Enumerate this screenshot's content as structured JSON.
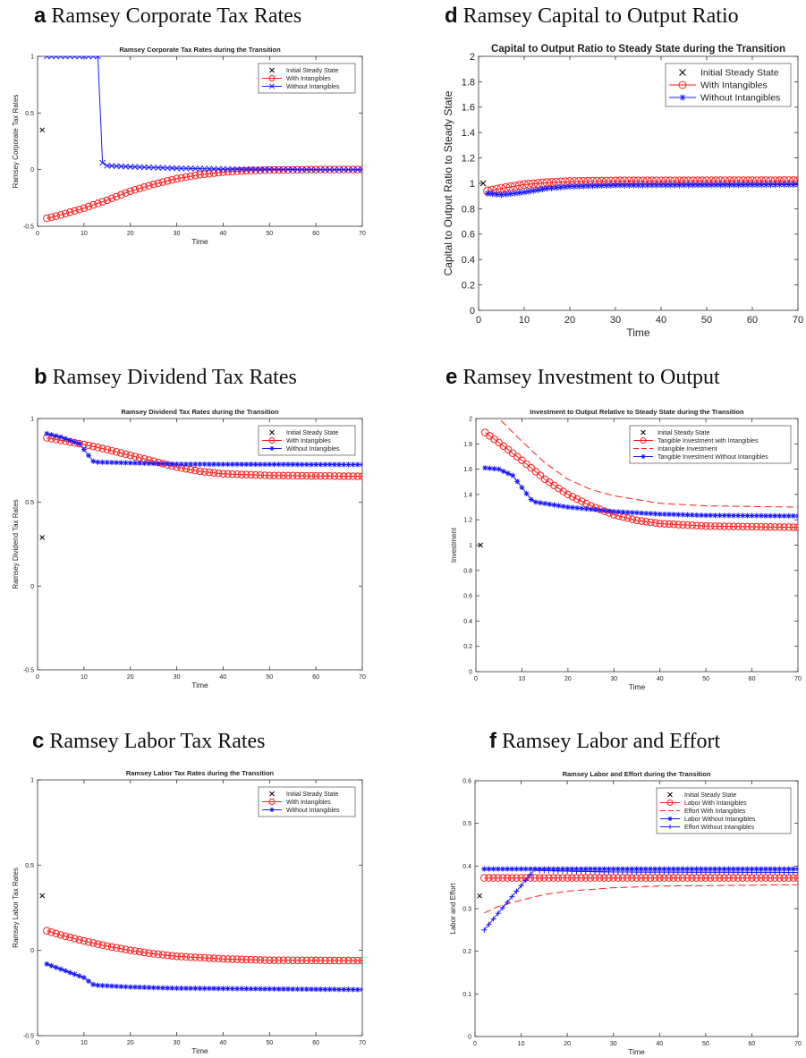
{
  "colors": {
    "red": "#ff1a1a",
    "blue": "#1a1aff",
    "black": "#000000"
  },
  "panels": [
    {
      "letter": "a",
      "name": "Ramsey Corporate Tax Rates"
    },
    {
      "letter": "d",
      "name": "Ramsey Capital to Output Ratio"
    },
    {
      "letter": "b",
      "name": "Ramsey Dividend Tax Rates"
    },
    {
      "letter": "e",
      "name": "Ramsey Investment to Output"
    },
    {
      "letter": "c",
      "name": "Ramsey Labor Tax Rates"
    },
    {
      "letter": "f",
      "name": "Ramsey Labor and Effort"
    }
  ],
  "chart_data": [
    {
      "type": "line",
      "title": "Ramsey Corporate Tax Rates during the Transition",
      "xlabel": "Time",
      "ylabel": "Ramsey Corporate Tax Rates",
      "xlim": [
        0,
        70
      ],
      "ylim": [
        -0.5,
        1
      ],
      "xticks": [
        0,
        10,
        20,
        30,
        40,
        50,
        60,
        70
      ],
      "yticks": [
        -0.5,
        0,
        0.5,
        1
      ],
      "legend_position": "top-right",
      "grid": false,
      "initial_steady_state": {
        "name": "Initial Steady State",
        "x": 1,
        "y": 0.35
      },
      "series": [
        {
          "name": "With Intangibles",
          "color": "red",
          "marker": "o",
          "line": "solid",
          "keys": [
            [
              2,
              -0.43
            ],
            [
              5,
              -0.4
            ],
            [
              10,
              -0.34
            ],
            [
              15,
              -0.27
            ],
            [
              20,
              -0.19
            ],
            [
              25,
              -0.13
            ],
            [
              30,
              -0.08
            ],
            [
              35,
              -0.045
            ],
            [
              40,
              -0.022
            ],
            [
              45,
              -0.01
            ],
            [
              50,
              -0.004
            ],
            [
              60,
              0
            ],
            [
              70,
              0
            ]
          ]
        },
        {
          "name": "Without Intangibles",
          "color": "blue",
          "marker": "x",
          "line": "solid",
          "keys": [
            [
              2,
              1
            ],
            [
              13,
              1
            ],
            [
              14,
              0.06
            ],
            [
              15,
              0.035
            ],
            [
              20,
              0.025
            ],
            [
              30,
              0.012
            ],
            [
              40,
              0.005
            ],
            [
              50,
              0.002
            ],
            [
              60,
              0
            ],
            [
              70,
              0
            ]
          ]
        }
      ]
    },
    {
      "type": "line",
      "title": "Capital to Output Ratio to Steady State during the Transition",
      "xlabel": "Time",
      "ylabel": "Capital to Output Ratio to Steady State",
      "xlim": [
        0,
        70
      ],
      "ylim": [
        0,
        2
      ],
      "xticks": [
        0,
        10,
        20,
        30,
        40,
        50,
        60,
        70
      ],
      "yticks": [
        0,
        0.2,
        0.4,
        0.6,
        0.8,
        1,
        1.2,
        1.4,
        1.6,
        1.8,
        2
      ],
      "legend_position": "top-right",
      "grid": false,
      "initial_steady_state": {
        "name": "Initial Steady State",
        "x": 1,
        "y": 1
      },
      "series": [
        {
          "name": "With Intangibles",
          "color": "red",
          "marker": "o",
          "line": "solid",
          "keys": [
            [
              2,
              0.94
            ],
            [
              5,
              0.96
            ],
            [
              10,
              0.99
            ],
            [
              15,
              1.005
            ],
            [
              20,
              1.013
            ],
            [
              30,
              1.018
            ],
            [
              70,
              1.02
            ]
          ]
        },
        {
          "name": "Without Intangibles",
          "color": "blue",
          "marker": "*",
          "line": "solid",
          "keys": [
            [
              2,
              0.92
            ],
            [
              5,
              0.91
            ],
            [
              10,
              0.93
            ],
            [
              15,
              0.96
            ],
            [
              20,
              0.975
            ],
            [
              30,
              0.985
            ],
            [
              70,
              0.99
            ]
          ]
        }
      ]
    },
    {
      "type": "line",
      "title": "Ramsey Dividend Tax Rates during the Transition",
      "xlabel": "Time",
      "ylabel": "Ramsey Dividend Tax Rates",
      "xlim": [
        0,
        70
      ],
      "ylim": [
        -0.5,
        1
      ],
      "xticks": [
        0,
        10,
        20,
        30,
        40,
        50,
        60,
        70
      ],
      "yticks": [
        -0.5,
        0,
        0.5,
        1
      ],
      "legend_position": "top-right",
      "grid": false,
      "initial_steady_state": {
        "name": "Initial Steady State",
        "x": 1,
        "y": 0.29
      },
      "series": [
        {
          "name": "With Intangibles",
          "color": "red",
          "marker": "o",
          "line": "solid",
          "keys": [
            [
              2,
              0.885
            ],
            [
              5,
              0.87
            ],
            [
              10,
              0.845
            ],
            [
              15,
              0.815
            ],
            [
              20,
              0.78
            ],
            [
              25,
              0.745
            ],
            [
              30,
              0.71
            ],
            [
              35,
              0.685
            ],
            [
              40,
              0.67
            ],
            [
              50,
              0.66
            ],
            [
              70,
              0.655
            ]
          ]
        },
        {
          "name": "Without Intangibles",
          "color": "blue",
          "marker": "*",
          "line": "solid",
          "keys": [
            [
              2,
              0.91
            ],
            [
              5,
              0.89
            ],
            [
              9,
              0.85
            ],
            [
              12,
              0.745
            ],
            [
              13,
              0.74
            ],
            [
              20,
              0.735
            ],
            [
              30,
              0.728
            ],
            [
              70,
              0.725
            ]
          ]
        }
      ]
    },
    {
      "type": "line",
      "title": "Investment to Output Relative to Steady State during the Transition",
      "xlabel": "Time",
      "ylabel": "Investment",
      "xlim": [
        0,
        70
      ],
      "ylim": [
        0,
        2
      ],
      "xticks": [
        0,
        10,
        20,
        30,
        40,
        50,
        60,
        70
      ],
      "yticks": [
        0,
        0.2,
        0.4,
        0.6,
        0.8,
        1,
        1.2,
        1.4,
        1.6,
        1.8,
        2
      ],
      "legend_position": "top-right",
      "grid": false,
      "initial_steady_state": {
        "name": "Initial Steady State",
        "x": 1,
        "y": 1
      },
      "series": [
        {
          "name": "Tangible Investment with Intangibles",
          "color": "red",
          "marker": "o",
          "line": "solid",
          "keys": [
            [
              2,
              1.89
            ],
            [
              5,
              1.81
            ],
            [
              10,
              1.67
            ],
            [
              15,
              1.52
            ],
            [
              20,
              1.4
            ],
            [
              25,
              1.31
            ],
            [
              30,
              1.24
            ],
            [
              35,
              1.195
            ],
            [
              40,
              1.17
            ],
            [
              50,
              1.15
            ],
            [
              70,
              1.14
            ]
          ]
        },
        {
          "name": "Intangible Investment",
          "color": "red",
          "marker": "none",
          "line": "dashed",
          "keys": [
            [
              2,
              2.1
            ],
            [
              5,
              2.0
            ],
            [
              10,
              1.82
            ],
            [
              15,
              1.65
            ],
            [
              20,
              1.52
            ],
            [
              25,
              1.44
            ],
            [
              30,
              1.39
            ],
            [
              40,
              1.33
            ],
            [
              50,
              1.31
            ],
            [
              70,
              1.3
            ]
          ]
        },
        {
          "name": "Tangible Investment Without Intangibles",
          "color": "blue",
          "marker": "*",
          "line": "solid",
          "keys": [
            [
              2,
              1.61
            ],
            [
              5,
              1.6
            ],
            [
              8,
              1.55
            ],
            [
              12,
              1.36
            ],
            [
              13,
              1.34
            ],
            [
              20,
              1.3
            ],
            [
              30,
              1.265
            ],
            [
              40,
              1.245
            ],
            [
              50,
              1.235
            ],
            [
              70,
              1.23
            ]
          ]
        }
      ]
    },
    {
      "type": "line",
      "title": "Ramsey Labor Tax Rates during the Transition",
      "xlabel": "Time",
      "ylabel": "Ramsey Labor Tax Rates",
      "xlim": [
        0,
        70
      ],
      "ylim": [
        -0.5,
        1
      ],
      "xticks": [
        0,
        10,
        20,
        30,
        40,
        50,
        60,
        70
      ],
      "yticks": [
        -0.5,
        0,
        0.5,
        1
      ],
      "legend_position": "top-right",
      "grid": false,
      "initial_steady_state": {
        "name": "Initial Steady State",
        "x": 1,
        "y": 0.32
      },
      "series": [
        {
          "name": "With Intangibles",
          "color": "red",
          "marker": "o",
          "line": "solid",
          "keys": [
            [
              2,
              0.115
            ],
            [
              5,
              0.09
            ],
            [
              10,
              0.055
            ],
            [
              15,
              0.025
            ],
            [
              20,
              0.0
            ],
            [
              25,
              -0.02
            ],
            [
              30,
              -0.035
            ],
            [
              40,
              -0.05
            ],
            [
              50,
              -0.058
            ],
            [
              70,
              -0.06
            ]
          ]
        },
        {
          "name": "Without Intangibles",
          "color": "blue",
          "marker": "*",
          "line": "solid",
          "keys": [
            [
              2,
              -0.08
            ],
            [
              5,
              -0.11
            ],
            [
              10,
              -0.16
            ],
            [
              12,
              -0.2
            ],
            [
              13,
              -0.205
            ],
            [
              20,
              -0.215
            ],
            [
              30,
              -0.222
            ],
            [
              70,
              -0.23
            ]
          ]
        }
      ]
    },
    {
      "type": "line",
      "title": "Ramsey Labor and Effort during the Transition",
      "xlabel": "Time",
      "ylabel": "Labor and Effort",
      "xlim": [
        0,
        70
      ],
      "ylim": [
        0,
        0.6
      ],
      "xticks": [
        0,
        10,
        20,
        30,
        40,
        50,
        60,
        70
      ],
      "yticks": [
        0,
        0.1,
        0.2,
        0.3,
        0.4,
        0.5,
        0.6
      ],
      "legend_position": "top-right",
      "grid": false,
      "initial_steady_state": {
        "name": "Initial Steady State",
        "x": 1,
        "y": 0.33
      },
      "series": [
        {
          "name": "Labor With Intangibles",
          "color": "red",
          "marker": "o",
          "line": "solid",
          "keys": [
            [
              2,
              0.372
            ],
            [
              70,
              0.372
            ]
          ]
        },
        {
          "name": "Effort With Intangibles",
          "color": "red",
          "marker": "none",
          "line": "dashed",
          "keys": [
            [
              2,
              0.29
            ],
            [
              5,
              0.305
            ],
            [
              10,
              0.32
            ],
            [
              15,
              0.333
            ],
            [
              20,
              0.341
            ],
            [
              30,
              0.349
            ],
            [
              40,
              0.353
            ],
            [
              70,
              0.356
            ]
          ]
        },
        {
          "name": "Labor Without Intangibles",
          "color": "blue",
          "marker": "*",
          "line": "solid",
          "keys": [
            [
              2,
              0.393
            ],
            [
              70,
              0.393
            ]
          ]
        },
        {
          "name": "Effort Without Intangibles",
          "color": "blue",
          "marker": "+",
          "line": "solid",
          "keys": [
            [
              2,
              0.25
            ],
            [
              13,
              0.393
            ],
            [
              14,
              0.39
            ],
            [
              20,
              0.388
            ],
            [
              30,
              0.386
            ],
            [
              70,
              0.385
            ]
          ]
        }
      ]
    }
  ]
}
